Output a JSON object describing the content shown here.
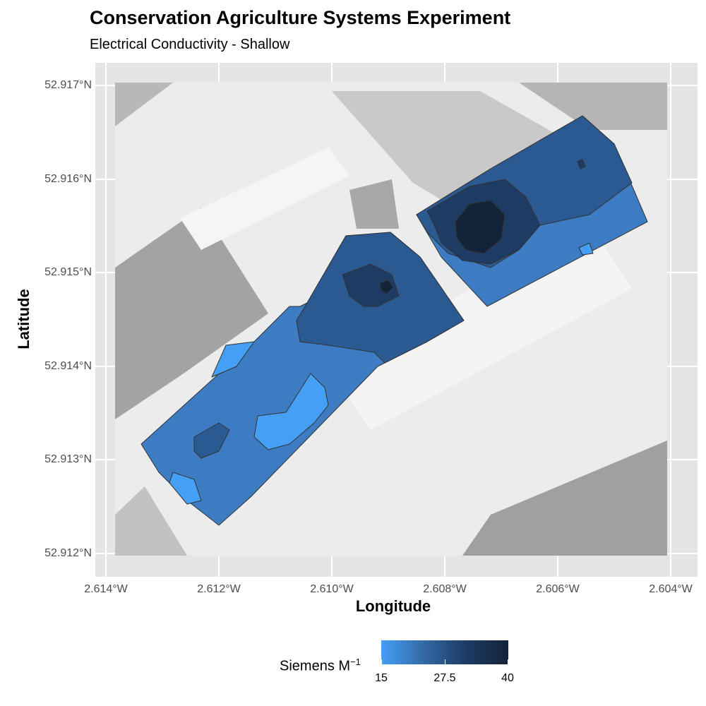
{
  "title": "Conservation Agriculture Systems Experiment",
  "subtitle": "Electrical Conductivity - Shallow",
  "axes": {
    "xlabel": "Longitude",
    "ylabel": "Latitude",
    "xticks": [
      "2.614°W",
      "2.612°W",
      "2.610°W",
      "2.608°W",
      "2.606°W",
      "2.604°W"
    ],
    "yticks": [
      "52.917°N",
      "52.916°N",
      "52.915°N",
      "52.914°N",
      "52.913°N",
      "52.912°N"
    ]
  },
  "legend": {
    "title": "Siemens M",
    "title_superscript": "−1",
    "labels": [
      "15",
      "27.5",
      "40"
    ],
    "low_color": "#449ff5",
    "high_color": "#13233a"
  },
  "map": {
    "basemap": "grayscale aerial imagery",
    "overlay": "filled contour map of shallow electrical conductivity",
    "value_range": [
      15,
      40
    ],
    "x_range": [
      "2.614°W",
      "2.604°W"
    ],
    "y_range": [
      "52.912°N",
      "52.917°N"
    ]
  }
}
